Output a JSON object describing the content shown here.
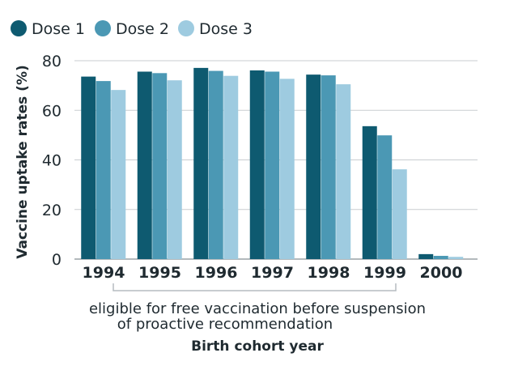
{
  "chart_data": {
    "type": "bar",
    "categories": [
      "1994",
      "1995",
      "1996",
      "1997",
      "1998",
      "1999",
      "2000"
    ],
    "series": [
      {
        "name": "Dose 1",
        "color": "#0e5a70",
        "values": [
          73.6,
          75.6,
          77.1,
          76.1,
          74.4,
          53.6,
          2.0
        ]
      },
      {
        "name": "Dose 2",
        "color": "#4b98b4",
        "values": [
          71.8,
          75.0,
          75.9,
          75.6,
          74.1,
          49.9,
          1.3
        ]
      },
      {
        "name": "Dose 3",
        "color": "#9ecbe0",
        "values": [
          68.2,
          72.1,
          73.9,
          72.7,
          70.5,
          36.2,
          0.9
        ]
      }
    ],
    "ylabel": "Vaccine uptake rates (%)",
    "xlabel": "Birth cohort year",
    "ylim": [
      0,
      80
    ],
    "yticks": [
      0,
      20,
      40,
      60,
      80
    ],
    "grid": true,
    "legend": "top-left",
    "annotation": {
      "line1": "eligible for free vaccination before suspension",
      "line2": "of proactive recommendation"
    }
  }
}
